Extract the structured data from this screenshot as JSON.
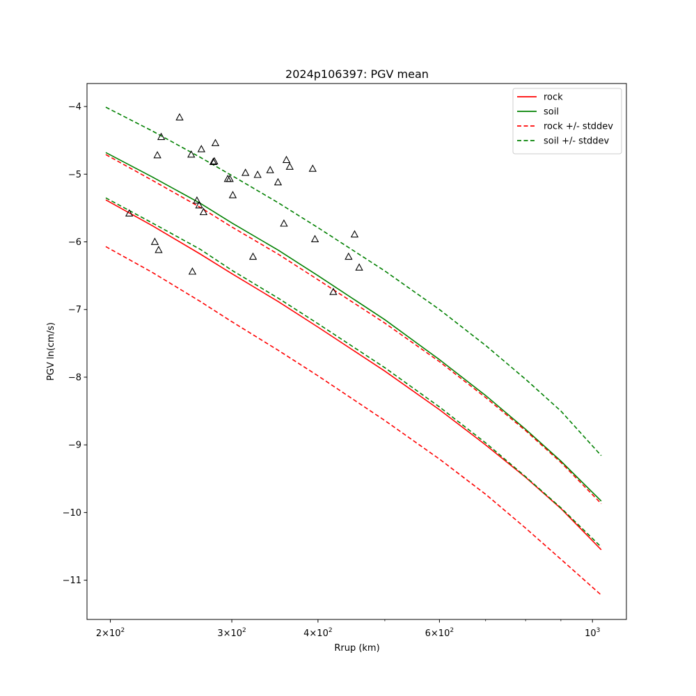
{
  "chart_data": {
    "type": "line",
    "title": "2024p106397: PGV mean",
    "xlabel": "Rrup (km)",
    "ylabel": "PGV ln(cm/s)",
    "xscale": "log",
    "xlim": [
      185,
      1120
    ],
    "ylim": [
      -11.58,
      -3.66
    ],
    "grid": false,
    "legend_position": "top-right",
    "x_ticks": [
      {
        "value": 200,
        "label": "2×10²"
      },
      {
        "value": 300,
        "label": "3×10²"
      },
      {
        "value": 400,
        "label": "4×10²"
      },
      {
        "value": 600,
        "label": "6×10²"
      },
      {
        "value": 1000,
        "label": "10³"
      }
    ],
    "y_ticks": [
      {
        "value": -4,
        "label": "−4"
      },
      {
        "value": -5,
        "label": "−5"
      },
      {
        "value": -6,
        "label": "−6"
      },
      {
        "value": -7,
        "label": "−7"
      },
      {
        "value": -8,
        "label": "−8"
      },
      {
        "value": -9,
        "label": "−9"
      },
      {
        "value": -10,
        "label": "−10"
      },
      {
        "value": -11,
        "label": "−11"
      }
    ],
    "x": [
      197,
      230,
      270,
      300,
      350,
      400,
      500,
      600,
      700,
      800,
      900,
      1030
    ],
    "series": [
      {
        "name": "rock",
        "color": "#ff0000",
        "dash": false,
        "values": [
          -5.38,
          -5.76,
          -6.18,
          -6.47,
          -6.88,
          -7.26,
          -7.91,
          -8.48,
          -9.0,
          -9.48,
          -9.94,
          -10.55
        ]
      },
      {
        "name": "soil",
        "color": "#008000",
        "dash": false,
        "values": [
          -4.68,
          -5.04,
          -5.43,
          -5.72,
          -6.12,
          -6.5,
          -7.15,
          -7.74,
          -8.27,
          -8.77,
          -9.24,
          -9.83
        ]
      },
      {
        "name": "rock +/- stddev",
        "color": "#ff0000",
        "dash": true,
        "values": [
          -4.71,
          -5.09,
          -5.49,
          -5.78,
          -6.18,
          -6.56,
          -7.2,
          -7.77,
          -8.3,
          -8.79,
          -9.26,
          -9.87
        ]
      },
      {
        "name": "rock +/- stddev",
        "color": "#ff0000",
        "dash": true,
        "legend": false,
        "values": [
          -6.07,
          -6.45,
          -6.88,
          -7.18,
          -7.6,
          -7.98,
          -8.64,
          -9.21,
          -9.73,
          -10.23,
          -10.69,
          -11.22
        ]
      },
      {
        "name": "soil +/- stddev",
        "color": "#008000",
        "dash": true,
        "values": [
          -4.01,
          -4.36,
          -4.75,
          -5.02,
          -5.42,
          -5.79,
          -6.43,
          -7.0,
          -7.53,
          -8.03,
          -8.5,
          -9.16
        ]
      },
      {
        "name": "soil +/- stddev",
        "color": "#008000",
        "dash": true,
        "legend": false,
        "values": [
          -5.35,
          -5.72,
          -6.11,
          -6.42,
          -6.83,
          -7.21,
          -7.86,
          -8.44,
          -8.97,
          -9.47,
          -9.93,
          -10.51
        ]
      }
    ],
    "observations": {
      "marker": "triangle",
      "color": "#000000",
      "points": [
        {
          "x": 213,
          "y": -5.58
        },
        {
          "x": 232,
          "y": -6.0
        },
        {
          "x": 234,
          "y": -4.72
        },
        {
          "x": 235,
          "y": -6.12
        },
        {
          "x": 237,
          "y": -4.45
        },
        {
          "x": 252,
          "y": -4.16
        },
        {
          "x": 262,
          "y": -4.71
        },
        {
          "x": 263,
          "y": -6.44
        },
        {
          "x": 267,
          "y": -5.39
        },
        {
          "x": 269,
          "y": -5.46
        },
        {
          "x": 271,
          "y": -4.63
        },
        {
          "x": 273,
          "y": -5.56
        },
        {
          "x": 282,
          "y": -4.82
        },
        {
          "x": 283,
          "y": -4.81
        },
        {
          "x": 284,
          "y": -4.54
        },
        {
          "x": 296,
          "y": -5.07
        },
        {
          "x": 298,
          "y": -5.07
        },
        {
          "x": 301,
          "y": -5.31
        },
        {
          "x": 314,
          "y": -4.98
        },
        {
          "x": 322,
          "y": -6.22
        },
        {
          "x": 327,
          "y": -5.01
        },
        {
          "x": 341,
          "y": -4.94
        },
        {
          "x": 350,
          "y": -5.12
        },
        {
          "x": 357,
          "y": -5.73
        },
        {
          "x": 360,
          "y": -4.79
        },
        {
          "x": 364,
          "y": -4.89
        },
        {
          "x": 393,
          "y": -4.92
        },
        {
          "x": 396,
          "y": -5.96
        },
        {
          "x": 421,
          "y": -6.74
        },
        {
          "x": 443,
          "y": -6.22
        },
        {
          "x": 452,
          "y": -5.89
        },
        {
          "x": 459,
          "y": -6.38
        }
      ]
    }
  }
}
